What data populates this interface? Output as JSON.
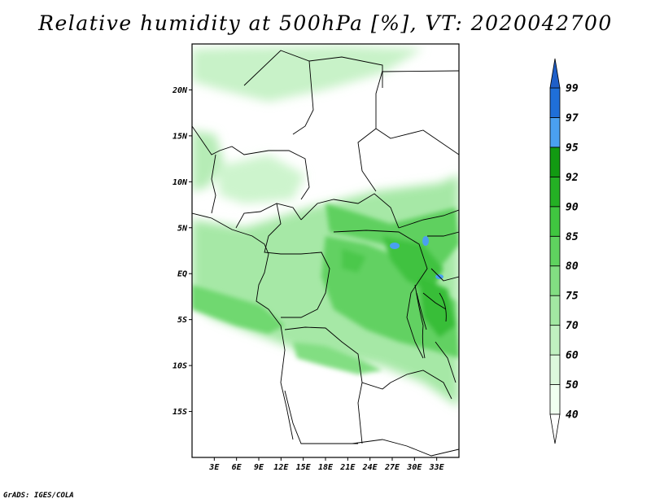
{
  "title": "Relative humidity at 500hPa [%], VT: 2020042700",
  "credit": "GrADS: IGES/COLA",
  "map": {
    "lon_range": [
      0,
      36
    ],
    "lat_range": [
      -20,
      25
    ],
    "lon_ticks": [
      {
        "value": 3,
        "label": "3E"
      },
      {
        "value": 6,
        "label": "6E"
      },
      {
        "value": 9,
        "label": "9E"
      },
      {
        "value": 12,
        "label": "12E"
      },
      {
        "value": 15,
        "label": "15E"
      },
      {
        "value": 18,
        "label": "18E"
      },
      {
        "value": 21,
        "label": "21E"
      },
      {
        "value": 24,
        "label": "24E"
      },
      {
        "value": 27,
        "label": "27E"
      },
      {
        "value": 30,
        "label": "30E"
      },
      {
        "value": 33,
        "label": "33E"
      }
    ],
    "lat_ticks": [
      {
        "value": 20,
        "label": "20N"
      },
      {
        "value": 15,
        "label": "15N"
      },
      {
        "value": 10,
        "label": "10N"
      },
      {
        "value": 5,
        "label": "5N"
      },
      {
        "value": 0,
        "label": "EQ"
      },
      {
        "value": -5,
        "label": "5S"
      },
      {
        "value": -10,
        "label": "10S"
      },
      {
        "value": -15,
        "label": "15S"
      }
    ]
  },
  "colorbar": {
    "levels": [
      {
        "label": "40",
        "color": "#f0fff0"
      },
      {
        "label": "50",
        "color": "#dcf8dc"
      },
      {
        "label": "60",
        "color": "#c0f0c0"
      },
      {
        "label": "70",
        "color": "#a2e8a2"
      },
      {
        "label": "75",
        "color": "#82de82"
      },
      {
        "label": "80",
        "color": "#5fd35f"
      },
      {
        "label": "85",
        "color": "#40c640"
      },
      {
        "label": "90",
        "color": "#24b024"
      },
      {
        "label": "92",
        "color": "#129a12"
      },
      {
        "label": "95",
        "color": "#4aa0f0"
      },
      {
        "label": "97",
        "color": "#1f6fd8"
      },
      {
        "label": "99",
        "color": "#1f6fd8"
      }
    ],
    "below_color": "#ffffff",
    "above_color": "#1f5fc8"
  }
}
